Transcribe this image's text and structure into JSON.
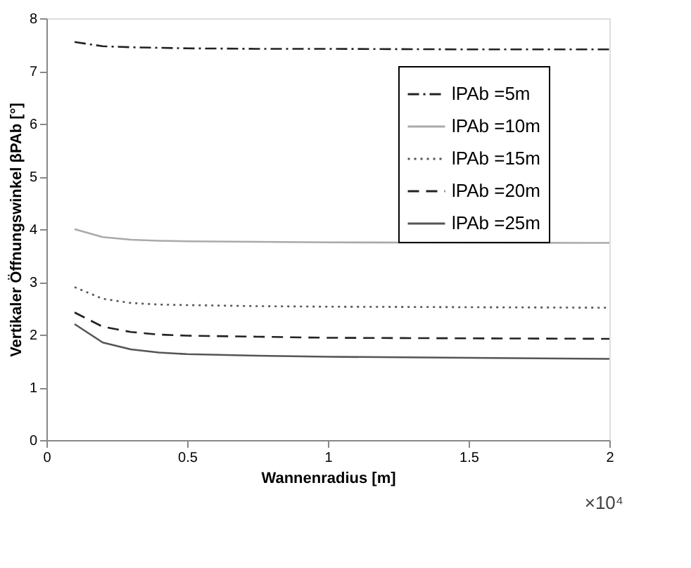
{
  "chart_data": {
    "type": "line",
    "xlabel": "Wannenradius [m]",
    "ylabel": "Vertikaler Öffnungswinkel βPAb [°]",
    "x": [
      0.1,
      0.2,
      0.3,
      0.4,
      0.5,
      0.75,
      1,
      1.5,
      2
    ],
    "series": [
      {
        "name": "lPAb =5m",
        "color": "#222222",
        "line_style": "dashdot",
        "values": [
          7.55,
          7.47,
          7.45,
          7.44,
          7.43,
          7.42,
          7.42,
          7.41,
          7.41
        ]
      },
      {
        "name": "lPAb =10m",
        "color": "#aaaaaa",
        "line_style": "solid",
        "x": [
          0.1,
          0.2,
          0.3,
          0.4,
          0.5,
          0.75,
          1,
          1.9,
          2
        ],
        "values": [
          4.0,
          3.85,
          3.8,
          3.78,
          3.77,
          3.76,
          3.75,
          3.74,
          3.74
        ]
      },
      {
        "name": "lPAb =15m",
        "color": "#555555",
        "line_style": "dotted",
        "values": [
          2.9,
          2.68,
          2.6,
          2.57,
          2.56,
          2.54,
          2.53,
          2.52,
          2.51
        ]
      },
      {
        "name": "lPAb =20m",
        "color": "#222222",
        "line_style": "dashed",
        "values": [
          2.42,
          2.15,
          2.05,
          2.0,
          1.98,
          1.96,
          1.94,
          1.93,
          1.92
        ]
      },
      {
        "name": "lPAb =25m",
        "color": "#555555",
        "line_style": "solid",
        "values": [
          2.2,
          1.85,
          1.72,
          1.66,
          1.63,
          1.6,
          1.58,
          1.56,
          1.54
        ]
      }
    ],
    "xlim": [
      0,
      2
    ],
    "xticks": [
      0,
      0.5,
      1,
      1.5,
      2
    ],
    "ylim": [
      0,
      8
    ],
    "yticks": [
      0,
      1,
      2,
      3,
      4,
      5,
      6,
      7,
      8
    ],
    "annotations": [
      "×10⁴"
    ],
    "grid": false,
    "legend": "top right",
    "marker": "none"
  }
}
